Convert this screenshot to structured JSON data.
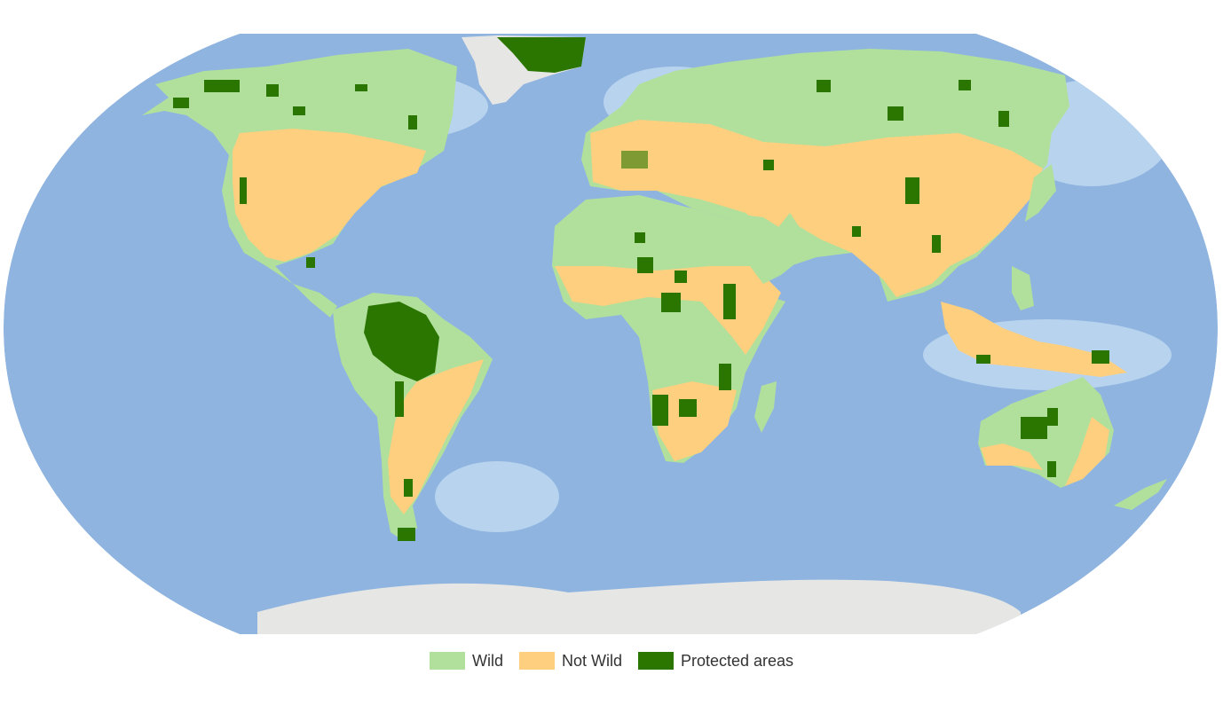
{
  "map": {
    "projection": "world-robinson-like",
    "colors": {
      "background": "#ffffff",
      "ocean": "#8fb4e0",
      "ocean_deep": "#7ea7db",
      "shelf": "#b8d3ee",
      "ice": "#e6e6e4",
      "wild": "#b1e09c",
      "not_wild": "#fdcf7f",
      "protected": "#2a7600"
    }
  },
  "legend": {
    "items": [
      {
        "label": "Wild",
        "color": "#b1e09c"
      },
      {
        "label": "Not Wild",
        "color": "#fdcf7f"
      },
      {
        "label": "Protected areas",
        "color": "#2a7600"
      }
    ]
  }
}
